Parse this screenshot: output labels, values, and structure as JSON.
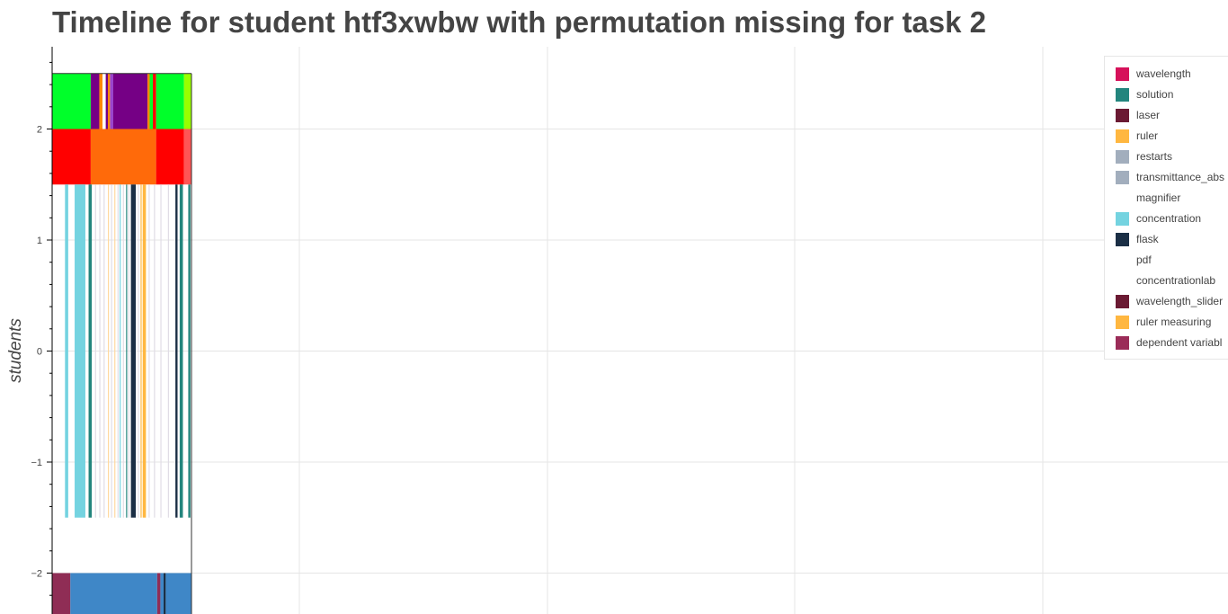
{
  "chart_data": {
    "type": "timeline",
    "title": "Timeline for student htf3xwbw with permutation missing for task 2",
    "ylabel": "students",
    "xlabel": "",
    "y_ticks": [
      2,
      1,
      0,
      -1,
      -2
    ],
    "y_tick_labels": [
      "2",
      "1",
      "0",
      "−1",
      "−2"
    ],
    "ylim": [
      -2.37,
      2.76
    ],
    "xlim": [
      0,
      1
    ],
    "grid": true,
    "legend_position": "top-right",
    "legend": [
      {
        "label": "wavelength",
        "color": "#d6115a"
      },
      {
        "label": "solution",
        "color": "#23857d"
      },
      {
        "label": "laser",
        "color": "#6b1a33"
      },
      {
        "label": "ruler",
        "color": "#ffb740"
      },
      {
        "label": "restarts",
        "color": "#a2aebd"
      },
      {
        "label": "transmittance_abs",
        "color": "#a2aebd"
      },
      {
        "label": "magnifier",
        "color": "#ffffff"
      },
      {
        "label": "concentration",
        "color": "#74d3e0"
      },
      {
        "label": "flask",
        "color": "#1b2f45"
      },
      {
        "label": "pdf",
        "color": "#ffffff"
      },
      {
        "label": "concentrationlab",
        "color": "#ffffff"
      },
      {
        "label": "wavelength_slider",
        "color": "#6b1a33"
      },
      {
        "label": "ruler measuring",
        "color": "#ffb740"
      },
      {
        "label": "dependent variabl",
        "color": "#9b2c58"
      }
    ],
    "rows": [
      {
        "y": 2,
        "segments": [
          {
            "start": 0.0,
            "end": 0.036,
            "color": "#00ff2a"
          },
          {
            "start": 0.036,
            "end": 0.044,
            "color": "#750085"
          },
          {
            "start": 0.044,
            "end": 0.047,
            "color": "#ff8800"
          },
          {
            "start": 0.047,
            "end": 0.05,
            "color": "#ffffff"
          },
          {
            "start": 0.05,
            "end": 0.052,
            "color": "#750085"
          },
          {
            "start": 0.052,
            "end": 0.054,
            "color": "#ff8800"
          },
          {
            "start": 0.054,
            "end": 0.057,
            "color": "#9944cc"
          },
          {
            "start": 0.057,
            "end": 0.089,
            "color": "#750085"
          },
          {
            "start": 0.089,
            "end": 0.091,
            "color": "#ff8800"
          },
          {
            "start": 0.091,
            "end": 0.094,
            "color": "#00ff2a"
          },
          {
            "start": 0.094,
            "end": 0.097,
            "color": "#ff0000"
          },
          {
            "start": 0.097,
            "end": 0.123,
            "color": "#00ff2a"
          },
          {
            "start": 0.123,
            "end": 0.13,
            "color": "#99ff00"
          }
        ]
      },
      {
        "y": 1.75,
        "segments": [
          {
            "start": 0.0,
            "end": 0.036,
            "color": "#ff0000"
          },
          {
            "start": 0.036,
            "end": 0.097,
            "color": "#ff6a0a"
          },
          {
            "start": 0.097,
            "end": 0.123,
            "color": "#ff0000"
          },
          {
            "start": 0.123,
            "end": 0.13,
            "color": "#ff5555"
          }
        ]
      },
      {
        "y": 0,
        "segments": [
          {
            "start": 0.012,
            "end": 0.015,
            "color": "#74d3e0"
          },
          {
            "start": 0.021,
            "end": 0.031,
            "color": "#74d3e0"
          },
          {
            "start": 0.034,
            "end": 0.037,
            "color": "#23857d"
          },
          {
            "start": 0.04,
            "end": 0.041,
            "color": "#e0dce6"
          },
          {
            "start": 0.044,
            "end": 0.045,
            "color": "#e0dce6"
          },
          {
            "start": 0.048,
            "end": 0.049,
            "color": "#e0dce6"
          },
          {
            "start": 0.052,
            "end": 0.053,
            "color": "#ffd9a0"
          },
          {
            "start": 0.055,
            "end": 0.056,
            "color": "#e0dce6"
          },
          {
            "start": 0.058,
            "end": 0.059,
            "color": "#ffd9a0"
          },
          {
            "start": 0.061,
            "end": 0.062,
            "color": "#e0dce6"
          },
          {
            "start": 0.063,
            "end": 0.064,
            "color": "#74d3e0"
          },
          {
            "start": 0.066,
            "end": 0.067,
            "color": "#e0dce6"
          },
          {
            "start": 0.069,
            "end": 0.07,
            "color": "#23857d"
          },
          {
            "start": 0.071,
            "end": 0.072,
            "color": "#e0dce6"
          },
          {
            "start": 0.0735,
            "end": 0.078,
            "color": "#1b2f45"
          },
          {
            "start": 0.08,
            "end": 0.081,
            "color": "#e0dce6"
          },
          {
            "start": 0.0825,
            "end": 0.0835,
            "color": "#ffb740"
          },
          {
            "start": 0.0845,
            "end": 0.0875,
            "color": "#ffb740"
          },
          {
            "start": 0.09,
            "end": 0.091,
            "color": "#e0dce6"
          },
          {
            "start": 0.095,
            "end": 0.096,
            "color": "#e0dce6"
          },
          {
            "start": 0.101,
            "end": 0.102,
            "color": "#e0dce6"
          },
          {
            "start": 0.108,
            "end": 0.109,
            "color": "#e0dce6"
          },
          {
            "start": 0.115,
            "end": 0.117,
            "color": "#1b2f45"
          },
          {
            "start": 0.119,
            "end": 0.122,
            "color": "#23857d"
          },
          {
            "start": 0.127,
            "end": 0.129,
            "color": "#23857d"
          }
        ]
      },
      {
        "y": -2,
        "segments": [
          {
            "start": 0.0,
            "end": 0.017,
            "color": "#8f2d55"
          },
          {
            "start": 0.017,
            "end": 0.098,
            "color": "#3f87c7"
          },
          {
            "start": 0.098,
            "end": 0.101,
            "color": "#8f2d55"
          },
          {
            "start": 0.101,
            "end": 0.104,
            "color": "#3f87c7"
          },
          {
            "start": 0.104,
            "end": 0.106,
            "color": "#1b2f45"
          },
          {
            "start": 0.106,
            "end": 0.13,
            "color": "#3f87c7"
          }
        ]
      }
    ]
  }
}
